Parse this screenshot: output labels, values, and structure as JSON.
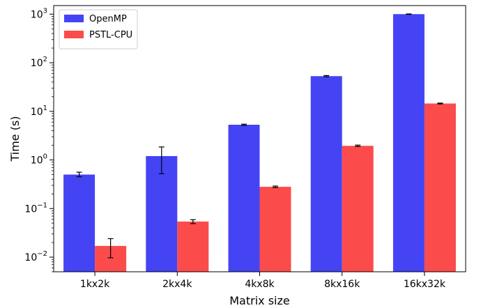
{
  "chart_data": {
    "type": "bar",
    "title": "",
    "xlabel": "Matrix size",
    "ylabel": "Time (s)",
    "yscale": "log",
    "ylim": [
      0.005,
      1500
    ],
    "yticks": [
      0.01,
      0.1,
      1,
      10,
      100,
      1000
    ],
    "ytick_labels": [
      {
        "base": "10",
        "exp": "−2"
      },
      {
        "base": "10",
        "exp": "−1"
      },
      {
        "base": "10",
        "exp": "0"
      },
      {
        "base": "10",
        "exp": "1"
      },
      {
        "base": "10",
        "exp": "2"
      },
      {
        "base": "10",
        "exp": "3"
      }
    ],
    "categories": [
      "1kx2k",
      "2kx4k",
      "4kx8k",
      "8kx16k",
      "16kx32k"
    ],
    "legend_position": "top-left",
    "grid": false,
    "series": [
      {
        "name": "OpenMP",
        "color": "#4444f4",
        "values": [
          0.5,
          1.2,
          5.3,
          53,
          1000
        ],
        "err_low": [
          0.45,
          0.52,
          5.15,
          51.5,
          990
        ],
        "err_high": [
          0.56,
          1.85,
          5.45,
          54.5,
          1010
        ]
      },
      {
        "name": "PSTL-CPU",
        "color": "#fb4b4b",
        "values": [
          0.017,
          0.054,
          0.28,
          1.95,
          14.5
        ],
        "err_low": [
          0.0097,
          0.049,
          0.27,
          1.88,
          14.2
        ],
        "err_high": [
          0.024,
          0.059,
          0.29,
          2.02,
          14.8
        ]
      }
    ]
  }
}
